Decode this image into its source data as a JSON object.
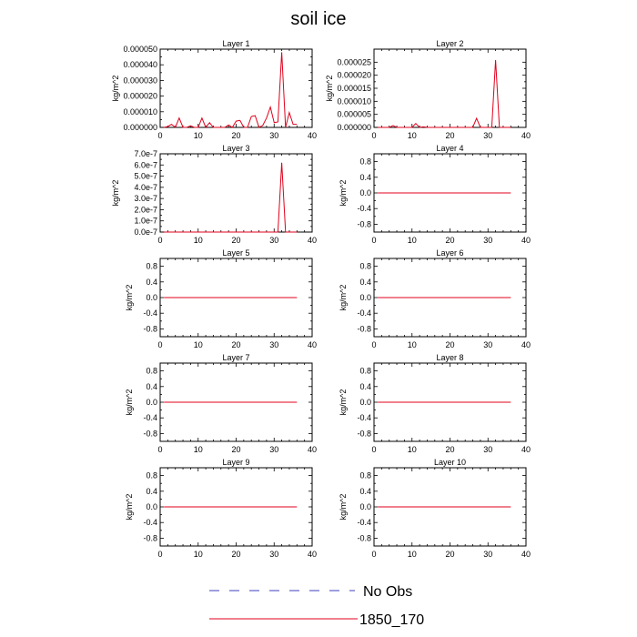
{
  "page_title": "soil ice",
  "legend": {
    "items": [
      {
        "label": "No Obs",
        "color": "#3f3fbf",
        "style": "dashed"
      },
      {
        "label": "1850_170",
        "color": "#e0001b",
        "style": "solid"
      }
    ]
  },
  "chart_data": [
    {
      "type": "line",
      "title": "Layer 1",
      "ylabel": "kg/m^2",
      "xlim": [
        0,
        40
      ],
      "xticks": [
        0,
        10,
        20,
        30,
        40
      ],
      "xtick_labels": [
        "0",
        "10",
        "20",
        "30",
        "40"
      ],
      "ylim": [
        0,
        5e-05
      ],
      "yticks": [
        0,
        1e-05,
        2e-05,
        3e-05,
        4e-05,
        5e-05
      ],
      "ytick_labels": [
        "0.000000",
        "0.000010",
        "0.000020",
        "0.000030",
        "0.000040",
        "0.000050"
      ],
      "series": [
        {
          "name": "1850_170",
          "x": [
            1,
            2,
            3,
            4,
            5,
            6,
            7,
            8,
            9,
            10,
            11,
            12,
            13,
            14,
            15,
            16,
            17,
            18,
            19,
            20,
            21,
            22,
            23,
            24,
            25,
            26,
            27,
            28,
            29,
            30,
            31,
            32,
            33,
            34,
            35,
            36
          ],
          "values": [
            0,
            5e-07,
            2e-06,
            0,
            6e-06,
            0,
            0,
            1e-06,
            0,
            0,
            6e-06,
            0,
            3e-06,
            0,
            0,
            0,
            0,
            1.5e-06,
            0,
            4e-06,
            4.5e-06,
            0,
            0,
            7e-06,
            7.5e-06,
            0,
            1.2e-06,
            6e-06,
            1.3e-05,
            3e-06,
            3.5e-06,
            4.8e-05,
            0,
            9.5e-06,
            2e-06,
            2e-06
          ]
        }
      ]
    },
    {
      "type": "line",
      "title": "Layer 2",
      "ylabel": "kg/m^2",
      "xlim": [
        0,
        40
      ],
      "xticks": [
        0,
        10,
        20,
        30,
        40
      ],
      "xtick_labels": [
        "0",
        "10",
        "20",
        "30",
        "40"
      ],
      "ylim": [
        0,
        3e-05
      ],
      "yticks": [
        0,
        5e-06,
        1e-05,
        1.5e-05,
        2e-05,
        2.5e-05
      ],
      "ytick_labels": [
        "0.000000",
        "0.000005",
        "0.000010",
        "0.000015",
        "0.000020",
        "0.000025"
      ],
      "series": [
        {
          "name": "1850_170",
          "x": [
            1,
            2,
            3,
            4,
            5,
            6,
            7,
            8,
            9,
            10,
            11,
            12,
            13,
            14,
            15,
            16,
            17,
            18,
            19,
            20,
            21,
            22,
            23,
            24,
            25,
            26,
            27,
            28,
            29,
            30,
            31,
            32,
            33,
            34,
            35,
            36
          ],
          "values": [
            0,
            0,
            0,
            0,
            7e-07,
            0,
            0,
            0,
            0,
            0,
            1.5e-06,
            0,
            2e-07,
            0,
            0,
            0,
            0,
            0,
            0,
            0,
            0,
            0,
            0,
            0,
            0,
            0,
            3.5e-06,
            0,
            0,
            0,
            0,
            2.58e-05,
            0,
            0,
            0,
            0
          ]
        }
      ]
    },
    {
      "type": "line",
      "title": "Layer 3",
      "ylabel": "kg/m^2",
      "xlim": [
        0,
        40
      ],
      "xticks": [
        0,
        10,
        20,
        30,
        40
      ],
      "xtick_labels": [
        "0",
        "10",
        "20",
        "30",
        "40"
      ],
      "ylim": [
        0,
        7e-07
      ],
      "yticks": [
        0,
        1e-07,
        2e-07,
        3e-07,
        4e-07,
        5e-07,
        6e-07,
        7e-07
      ],
      "ytick_labels": [
        "0.0e-7",
        "1.0e-7",
        "2.0e-7",
        "3.0e-7",
        "4.0e-7",
        "5.0e-7",
        "6.0e-7",
        "7.0e-7"
      ],
      "series": [
        {
          "name": "1850_170",
          "x": [
            1,
            2,
            3,
            4,
            5,
            6,
            7,
            8,
            9,
            10,
            11,
            12,
            13,
            14,
            15,
            16,
            17,
            18,
            19,
            20,
            21,
            22,
            23,
            24,
            25,
            26,
            27,
            28,
            29,
            30,
            31,
            32,
            33,
            34,
            35,
            36
          ],
          "values": [
            0,
            0,
            0,
            0,
            0,
            0,
            0,
            0,
            0,
            0,
            0,
            0,
            0,
            0,
            0,
            0,
            0,
            0,
            0,
            0,
            0,
            0,
            0,
            0,
            0,
            0,
            0,
            0,
            0,
            0,
            0,
            6.2e-07,
            0,
            0,
            0,
            0
          ]
        }
      ]
    },
    {
      "type": "line",
      "title": "Layer 4",
      "ylabel": "kg/m^2",
      "xlim": [
        0,
        40
      ],
      "xticks": [
        0,
        10,
        20,
        30,
        40
      ],
      "xtick_labels": [
        "0",
        "10",
        "20",
        "30",
        "40"
      ],
      "ylim": [
        -1,
        1
      ],
      "yticks": [
        -0.8,
        -0.4,
        0,
        0.4,
        0.8
      ],
      "ytick_labels": [
        "-0.8",
        "-0.4",
        "0.0",
        "0.4",
        "0.8"
      ],
      "series": [
        {
          "name": "1850_170",
          "x": [
            1,
            36
          ],
          "values": [
            0,
            0
          ]
        }
      ]
    },
    {
      "type": "line",
      "title": "Layer 5",
      "ylabel": "kg/m^2",
      "xlim": [
        0,
        40
      ],
      "xticks": [
        0,
        10,
        20,
        30,
        40
      ],
      "xtick_labels": [
        "0",
        "10",
        "20",
        "30",
        "40"
      ],
      "ylim": [
        -1,
        1
      ],
      "yticks": [
        -0.8,
        -0.4,
        0,
        0.4,
        0.8
      ],
      "ytick_labels": [
        "-0.8",
        "-0.4",
        "0.0",
        "0.4",
        "0.8"
      ],
      "series": [
        {
          "name": "1850_170",
          "x": [
            1,
            36
          ],
          "values": [
            0,
            0
          ]
        }
      ]
    },
    {
      "type": "line",
      "title": "Layer 6",
      "ylabel": "kg/m^2",
      "xlim": [
        0,
        40
      ],
      "xticks": [
        0,
        10,
        20,
        30,
        40
      ],
      "xtick_labels": [
        "0",
        "10",
        "20",
        "30",
        "40"
      ],
      "ylim": [
        -1,
        1
      ],
      "yticks": [
        -0.8,
        -0.4,
        0,
        0.4,
        0.8
      ],
      "ytick_labels": [
        "-0.8",
        "-0.4",
        "0.0",
        "0.4",
        "0.8"
      ],
      "series": [
        {
          "name": "1850_170",
          "x": [
            1,
            36
          ],
          "values": [
            0,
            0
          ]
        }
      ]
    },
    {
      "type": "line",
      "title": "Layer 7",
      "ylabel": "kg/m^2",
      "xlim": [
        0,
        40
      ],
      "xticks": [
        0,
        10,
        20,
        30,
        40
      ],
      "xtick_labels": [
        "0",
        "10",
        "20",
        "30",
        "40"
      ],
      "ylim": [
        -1,
        1
      ],
      "yticks": [
        -0.8,
        -0.4,
        0,
        0.4,
        0.8
      ],
      "ytick_labels": [
        "-0.8",
        "-0.4",
        "0.0",
        "0.4",
        "0.8"
      ],
      "series": [
        {
          "name": "1850_170",
          "x": [
            1,
            36
          ],
          "values": [
            0,
            0
          ]
        }
      ]
    },
    {
      "type": "line",
      "title": "Layer 8",
      "ylabel": "kg/m^2",
      "xlim": [
        0,
        40
      ],
      "xticks": [
        0,
        10,
        20,
        30,
        40
      ],
      "xtick_labels": [
        "0",
        "10",
        "20",
        "30",
        "40"
      ],
      "ylim": [
        -1,
        1
      ],
      "yticks": [
        -0.8,
        -0.4,
        0,
        0.4,
        0.8
      ],
      "ytick_labels": [
        "-0.8",
        "-0.4",
        "0.0",
        "0.4",
        "0.8"
      ],
      "series": [
        {
          "name": "1850_170",
          "x": [
            1,
            36
          ],
          "values": [
            0,
            0
          ]
        }
      ]
    },
    {
      "type": "line",
      "title": "Layer 9",
      "ylabel": "kg/m^2",
      "xlim": [
        0,
        40
      ],
      "xticks": [
        0,
        10,
        20,
        30,
        40
      ],
      "xtick_labels": [
        "0",
        "10",
        "20",
        "30",
        "40"
      ],
      "ylim": [
        -1,
        1
      ],
      "yticks": [
        -0.8,
        -0.4,
        0,
        0.4,
        0.8
      ],
      "ytick_labels": [
        "-0.8",
        "-0.4",
        "0.0",
        "0.4",
        "0.8"
      ],
      "series": [
        {
          "name": "1850_170",
          "x": [
            1,
            36
          ],
          "values": [
            0,
            0
          ]
        }
      ]
    },
    {
      "type": "line",
      "title": "Layer 10",
      "ylabel": "kg/m^2",
      "xlim": [
        0,
        40
      ],
      "xticks": [
        0,
        10,
        20,
        30,
        40
      ],
      "xtick_labels": [
        "0",
        "10",
        "20",
        "30",
        "40"
      ],
      "ylim": [
        -1,
        1
      ],
      "yticks": [
        -0.8,
        -0.4,
        0,
        0.4,
        0.8
      ],
      "ytick_labels": [
        "-0.8",
        "-0.4",
        "0.0",
        "0.4",
        "0.8"
      ],
      "series": [
        {
          "name": "1850_170",
          "x": [
            1,
            36
          ],
          "values": [
            0,
            0
          ]
        }
      ]
    }
  ]
}
